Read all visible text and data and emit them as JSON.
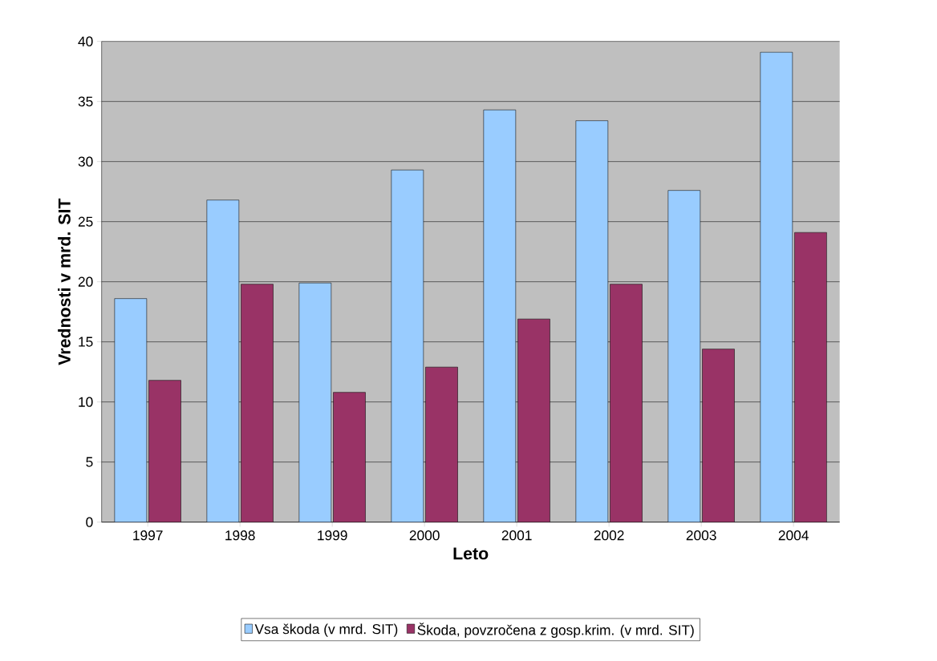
{
  "chart_data": {
    "type": "bar",
    "xlabel": "Leto",
    "ylabel": "Vrednosti v mrd. SIT",
    "categories": [
      "1997",
      "1998",
      "1999",
      "2000",
      "2001",
      "2002",
      "2003",
      "2004"
    ],
    "series": [
      {
        "name": "Vsa škoda (v mrd. SIT)",
        "color": "#99ccff",
        "values": [
          18.6,
          26.8,
          19.9,
          29.3,
          34.3,
          33.4,
          27.6,
          39.1
        ]
      },
      {
        "name": "Škoda, povzročena z gosp.krim.  (v mrd. SIT)",
        "color": "#993366",
        "values": [
          11.8,
          19.8,
          10.8,
          12.9,
          16.9,
          19.8,
          14.4,
          24.1
        ]
      }
    ],
    "ylim": [
      0,
      40
    ],
    "yticks": [
      0,
      5,
      10,
      15,
      20,
      25,
      30,
      35,
      40
    ],
    "grid": "y",
    "legend": "bottom"
  }
}
